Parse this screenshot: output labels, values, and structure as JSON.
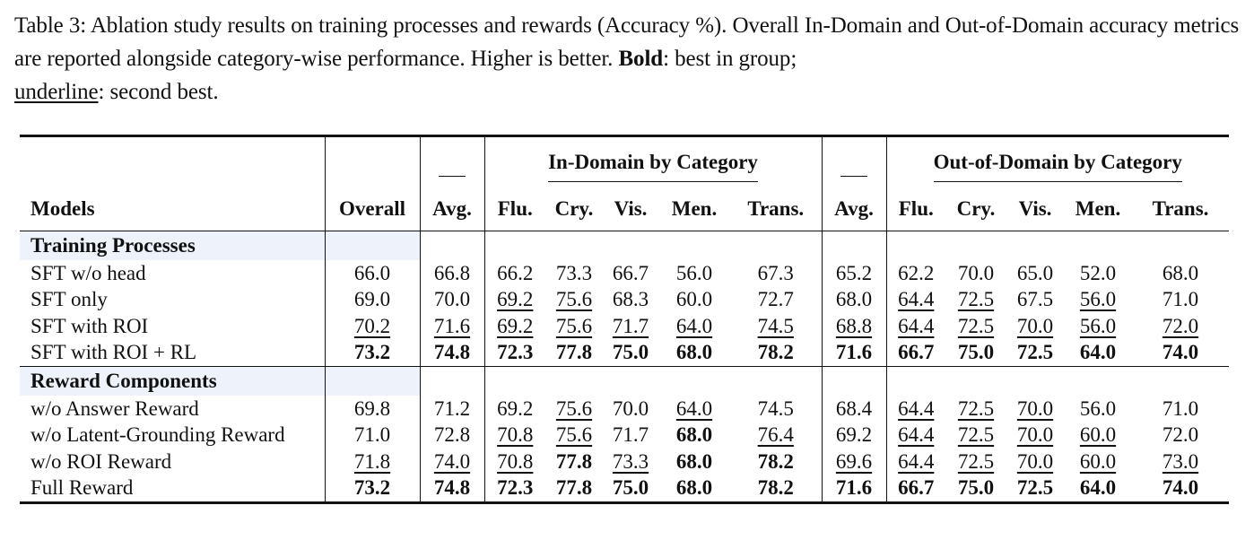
{
  "caption": {
    "label": "Table 3:",
    "text1": "Ablation study results on training processes and rewards (Accuracy %). Overall In-Domain and Out-of-Domain accuracy metrics are reported alongside category-wise performance. Higher is better.",
    "bold_word": "Bold",
    "text2": ": best in group;",
    "underline_word": "underline",
    "text3": ": second best."
  },
  "table": {
    "group_in": "In-Domain by Category",
    "group_out": "Out-of-Domain by Category",
    "headers": [
      "Models",
      "Overall",
      "Avg.",
      "Flu.",
      "Cry.",
      "Vis.",
      "Men.",
      "Trans.",
      "Avg.",
      "Flu.",
      "Cry.",
      "Vis.",
      "Men.",
      "Trans."
    ],
    "sections": [
      {
        "title": "Training Processes",
        "rows": [
          {
            "name": "SFT w/o head",
            "cells": [
              {
                "v": "66.0",
                "s": ""
              },
              {
                "v": "66.8",
                "s": ""
              },
              {
                "v": "66.2",
                "s": ""
              },
              {
                "v": "73.3",
                "s": ""
              },
              {
                "v": "66.7",
                "s": ""
              },
              {
                "v": "56.0",
                "s": ""
              },
              {
                "v": "67.3",
                "s": ""
              },
              {
                "v": "65.2",
                "s": ""
              },
              {
                "v": "62.2",
                "s": ""
              },
              {
                "v": "70.0",
                "s": ""
              },
              {
                "v": "65.0",
                "s": ""
              },
              {
                "v": "52.0",
                "s": ""
              },
              {
                "v": "68.0",
                "s": ""
              }
            ]
          },
          {
            "name": "SFT only",
            "cells": [
              {
                "v": "69.0",
                "s": ""
              },
              {
                "v": "70.0",
                "s": ""
              },
              {
                "v": "69.2",
                "s": "u"
              },
              {
                "v": "75.6",
                "s": "u"
              },
              {
                "v": "68.3",
                "s": ""
              },
              {
                "v": "60.0",
                "s": ""
              },
              {
                "v": "72.7",
                "s": ""
              },
              {
                "v": "68.0",
                "s": ""
              },
              {
                "v": "64.4",
                "s": "u"
              },
              {
                "v": "72.5",
                "s": "u"
              },
              {
                "v": "67.5",
                "s": ""
              },
              {
                "v": "56.0",
                "s": "u"
              },
              {
                "v": "71.0",
                "s": ""
              }
            ]
          },
          {
            "name": "SFT with ROI",
            "cells": [
              {
                "v": "70.2",
                "s": "u"
              },
              {
                "v": "71.6",
                "s": "u"
              },
              {
                "v": "69.2",
                "s": "u"
              },
              {
                "v": "75.6",
                "s": "u"
              },
              {
                "v": "71.7",
                "s": "u"
              },
              {
                "v": "64.0",
                "s": "u"
              },
              {
                "v": "74.5",
                "s": "u"
              },
              {
                "v": "68.8",
                "s": "u"
              },
              {
                "v": "64.4",
                "s": "u"
              },
              {
                "v": "72.5",
                "s": "u"
              },
              {
                "v": "70.0",
                "s": "u"
              },
              {
                "v": "56.0",
                "s": "u"
              },
              {
                "v": "72.0",
                "s": "u"
              }
            ]
          },
          {
            "name": "SFT with ROI + RL",
            "cells": [
              {
                "v": "73.2",
                "s": "b"
              },
              {
                "v": "74.8",
                "s": "b"
              },
              {
                "v": "72.3",
                "s": "b"
              },
              {
                "v": "77.8",
                "s": "b"
              },
              {
                "v": "75.0",
                "s": "b"
              },
              {
                "v": "68.0",
                "s": "b"
              },
              {
                "v": "78.2",
                "s": "b"
              },
              {
                "v": "71.6",
                "s": "b"
              },
              {
                "v": "66.7",
                "s": "b"
              },
              {
                "v": "75.0",
                "s": "b"
              },
              {
                "v": "72.5",
                "s": "b"
              },
              {
                "v": "64.0",
                "s": "b"
              },
              {
                "v": "74.0",
                "s": "b"
              }
            ]
          }
        ]
      },
      {
        "title": "Reward Components",
        "rows": [
          {
            "name": "w/o Answer Reward",
            "cells": [
              {
                "v": "69.8",
                "s": ""
              },
              {
                "v": "71.2",
                "s": ""
              },
              {
                "v": "69.2",
                "s": ""
              },
              {
                "v": "75.6",
                "s": "u"
              },
              {
                "v": "70.0",
                "s": ""
              },
              {
                "v": "64.0",
                "s": "u"
              },
              {
                "v": "74.5",
                "s": ""
              },
              {
                "v": "68.4",
                "s": ""
              },
              {
                "v": "64.4",
                "s": "u"
              },
              {
                "v": "72.5",
                "s": "u"
              },
              {
                "v": "70.0",
                "s": "u"
              },
              {
                "v": "56.0",
                "s": ""
              },
              {
                "v": "71.0",
                "s": ""
              }
            ]
          },
          {
            "name": "w/o Latent-Grounding Reward",
            "cells": [
              {
                "v": "71.0",
                "s": ""
              },
              {
                "v": "72.8",
                "s": ""
              },
              {
                "v": "70.8",
                "s": "u"
              },
              {
                "v": "75.6",
                "s": "u"
              },
              {
                "v": "71.7",
                "s": ""
              },
              {
                "v": "68.0",
                "s": "b"
              },
              {
                "v": "76.4",
                "s": "u"
              },
              {
                "v": "69.2",
                "s": ""
              },
              {
                "v": "64.4",
                "s": "u"
              },
              {
                "v": "72.5",
                "s": "u"
              },
              {
                "v": "70.0",
                "s": "u"
              },
              {
                "v": "60.0",
                "s": "u"
              },
              {
                "v": "72.0",
                "s": ""
              }
            ]
          },
          {
            "name": "w/o ROI Reward",
            "cells": [
              {
                "v": "71.8",
                "s": "u"
              },
              {
                "v": "74.0",
                "s": "u"
              },
              {
                "v": "70.8",
                "s": "u"
              },
              {
                "v": "77.8",
                "s": "b"
              },
              {
                "v": "73.3",
                "s": "u"
              },
              {
                "v": "68.0",
                "s": "b"
              },
              {
                "v": "78.2",
                "s": "b"
              },
              {
                "v": "69.6",
                "s": "u"
              },
              {
                "v": "64.4",
                "s": "u"
              },
              {
                "v": "72.5",
                "s": "u"
              },
              {
                "v": "70.0",
                "s": "u"
              },
              {
                "v": "60.0",
                "s": "u"
              },
              {
                "v": "73.0",
                "s": "u"
              }
            ]
          },
          {
            "name": "Full Reward",
            "cells": [
              {
                "v": "73.2",
                "s": "b"
              },
              {
                "v": "74.8",
                "s": "b"
              },
              {
                "v": "72.3",
                "s": "b"
              },
              {
                "v": "77.8",
                "s": "b"
              },
              {
                "v": "75.0",
                "s": "b"
              },
              {
                "v": "68.0",
                "s": "b"
              },
              {
                "v": "78.2",
                "s": "b"
              },
              {
                "v": "71.6",
                "s": "b"
              },
              {
                "v": "66.7",
                "s": "b"
              },
              {
                "v": "75.0",
                "s": "b"
              },
              {
                "v": "72.5",
                "s": "b"
              },
              {
                "v": "64.0",
                "s": "b"
              },
              {
                "v": "74.0",
                "s": "b"
              }
            ]
          }
        ]
      }
    ]
  }
}
